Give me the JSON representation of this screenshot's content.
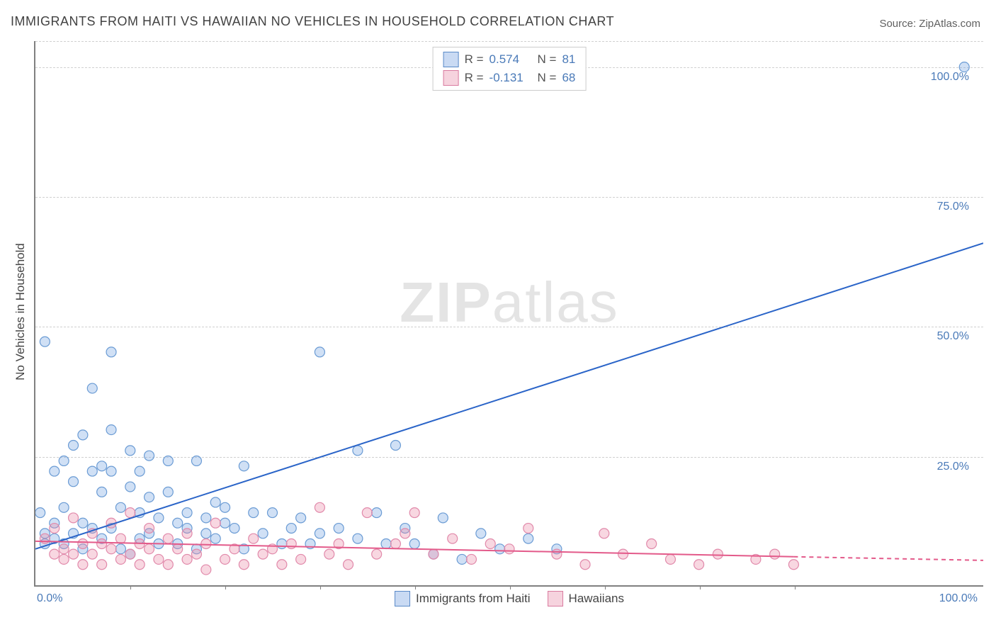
{
  "title": "IMMIGRANTS FROM HAITI VS HAWAIIAN NO VEHICLES IN HOUSEHOLD CORRELATION CHART",
  "source": "Source: ZipAtlas.com",
  "y_axis_label": "No Vehicles in Household",
  "watermark": {
    "strong": "ZIP",
    "light": "atlas"
  },
  "chart": {
    "type": "scatter",
    "xlim": [
      0,
      100
    ],
    "ylim": [
      0,
      105
    ],
    "grid_color": "#d0d0d0",
    "background_color": "#ffffff",
    "axis_color": "#808080",
    "y_ticks": [
      {
        "value": 25,
        "label": "25.0%"
      },
      {
        "value": 50,
        "label": "50.0%"
      },
      {
        "value": 75,
        "label": "75.0%"
      },
      {
        "value": 100,
        "label": "100.0%"
      }
    ],
    "y_grid_extra": [
      105
    ],
    "x_ticks_labels": [
      {
        "value": 0,
        "label": "0.0%"
      },
      {
        "value": 100,
        "label": "100.0%"
      }
    ],
    "x_tick_marks": [
      10,
      20,
      30,
      40,
      50,
      60,
      70,
      80
    ],
    "marker_radius": 7,
    "marker_stroke_width": 1.2,
    "line_width": 2,
    "series": [
      {
        "id": "haiti",
        "label": "Immigrants from Haiti",
        "color_fill": "rgba(120,165,225,0.35)",
        "color_stroke": "#6a9bd4",
        "line_color": "#2a64c8",
        "R": "0.574",
        "N": "81",
        "trend": {
          "x1": 0,
          "y1": 7,
          "x2": 100,
          "y2": 66
        },
        "points": [
          [
            1,
            47
          ],
          [
            8,
            45
          ],
          [
            30,
            45
          ],
          [
            1,
            10
          ],
          [
            1,
            8
          ],
          [
            2,
            12
          ],
          [
            2,
            9
          ],
          [
            2,
            22
          ],
          [
            3,
            15
          ],
          [
            3,
            24
          ],
          [
            3,
            8
          ],
          [
            4,
            20
          ],
          [
            4,
            10
          ],
          [
            4,
            27
          ],
          [
            5,
            29
          ],
          [
            5,
            12
          ],
          [
            5,
            7
          ],
          [
            6,
            22
          ],
          [
            6,
            11
          ],
          [
            6,
            38
          ],
          [
            7,
            23
          ],
          [
            7,
            9
          ],
          [
            7,
            18
          ],
          [
            8,
            22
          ],
          [
            8,
            30
          ],
          [
            8,
            11
          ],
          [
            9,
            15
          ],
          [
            9,
            7
          ],
          [
            10,
            19
          ],
          [
            10,
            26
          ],
          [
            10,
            6
          ],
          [
            11,
            14
          ],
          [
            11,
            22
          ],
          [
            11,
            9
          ],
          [
            12,
            25
          ],
          [
            12,
            10
          ],
          [
            12,
            17
          ],
          [
            13,
            13
          ],
          [
            13,
            8
          ],
          [
            14,
            18
          ],
          [
            14,
            24
          ],
          [
            15,
            12
          ],
          [
            15,
            8
          ],
          [
            16,
            11
          ],
          [
            16,
            14
          ],
          [
            17,
            24
          ],
          [
            17,
            7
          ],
          [
            18,
            13
          ],
          [
            18,
            10
          ],
          [
            19,
            16
          ],
          [
            19,
            9
          ],
          [
            20,
            15
          ],
          [
            20,
            12
          ],
          [
            21,
            11
          ],
          [
            22,
            23
          ],
          [
            22,
            7
          ],
          [
            23,
            14
          ],
          [
            24,
            10
          ],
          [
            25,
            14
          ],
          [
            26,
            8
          ],
          [
            27,
            11
          ],
          [
            28,
            13
          ],
          [
            29,
            8
          ],
          [
            30,
            10
          ],
          [
            32,
            11
          ],
          [
            34,
            26
          ],
          [
            34,
            9
          ],
          [
            36,
            14
          ],
          [
            37,
            8
          ],
          [
            38,
            27
          ],
          [
            39,
            11
          ],
          [
            40,
            8
          ],
          [
            42,
            6
          ],
          [
            43,
            13
          ],
          [
            45,
            5
          ],
          [
            47,
            10
          ],
          [
            49,
            7
          ],
          [
            52,
            9
          ],
          [
            55,
            7
          ],
          [
            98,
            100
          ],
          [
            0.5,
            14
          ]
        ]
      },
      {
        "id": "hawaiians",
        "label": "Hawaiians",
        "color_fill": "rgba(235,140,170,0.35)",
        "color_stroke": "#e189aa",
        "line_color": "#e35a8a",
        "R": "-0.131",
        "N": "68",
        "trend": {
          "x1": 0,
          "y1": 8.5,
          "x2": 80,
          "y2": 5.5
        },
        "trend_dash": {
          "x1": 80,
          "y1": 5.5,
          "x2": 100,
          "y2": 4.8
        },
        "points": [
          [
            1,
            9
          ],
          [
            2,
            6
          ],
          [
            2,
            11
          ],
          [
            3,
            7
          ],
          [
            3,
            5
          ],
          [
            4,
            13
          ],
          [
            4,
            6
          ],
          [
            5,
            8
          ],
          [
            5,
            4
          ],
          [
            6,
            10
          ],
          [
            6,
            6
          ],
          [
            7,
            8
          ],
          [
            7,
            4
          ],
          [
            8,
            12
          ],
          [
            8,
            7
          ],
          [
            9,
            5
          ],
          [
            9,
            9
          ],
          [
            10,
            6
          ],
          [
            10,
            14
          ],
          [
            11,
            8
          ],
          [
            11,
            4
          ],
          [
            12,
            7
          ],
          [
            12,
            11
          ],
          [
            13,
            5
          ],
          [
            14,
            9
          ],
          [
            14,
            4
          ],
          [
            15,
            7
          ],
          [
            16,
            5
          ],
          [
            16,
            10
          ],
          [
            17,
            6
          ],
          [
            18,
            8
          ],
          [
            18,
            3
          ],
          [
            19,
            12
          ],
          [
            20,
            5
          ],
          [
            21,
            7
          ],
          [
            22,
            4
          ],
          [
            23,
            9
          ],
          [
            24,
            6
          ],
          [
            25,
            7
          ],
          [
            26,
            4
          ],
          [
            27,
            8
          ],
          [
            28,
            5
          ],
          [
            30,
            15
          ],
          [
            31,
            6
          ],
          [
            32,
            8
          ],
          [
            33,
            4
          ],
          [
            35,
            14
          ],
          [
            36,
            6
          ],
          [
            38,
            8
          ],
          [
            39,
            10
          ],
          [
            40,
            14
          ],
          [
            42,
            6
          ],
          [
            44,
            9
          ],
          [
            46,
            5
          ],
          [
            48,
            8
          ],
          [
            50,
            7
          ],
          [
            52,
            11
          ],
          [
            55,
            6
          ],
          [
            58,
            4
          ],
          [
            60,
            10
          ],
          [
            62,
            6
          ],
          [
            65,
            8
          ],
          [
            67,
            5
          ],
          [
            70,
            4
          ],
          [
            72,
            6
          ],
          [
            76,
            5
          ],
          [
            80,
            4
          ],
          [
            78,
            6
          ]
        ]
      }
    ]
  },
  "colors": {
    "title_color": "#424242",
    "source_color": "#606060",
    "tick_label_color": "#4a7ab8",
    "y_axis_label_color": "#444444"
  },
  "fonts": {
    "title_size": 18,
    "source_size": 15,
    "tick_size": 16,
    "legend_size": 17,
    "watermark_size": 80
  }
}
